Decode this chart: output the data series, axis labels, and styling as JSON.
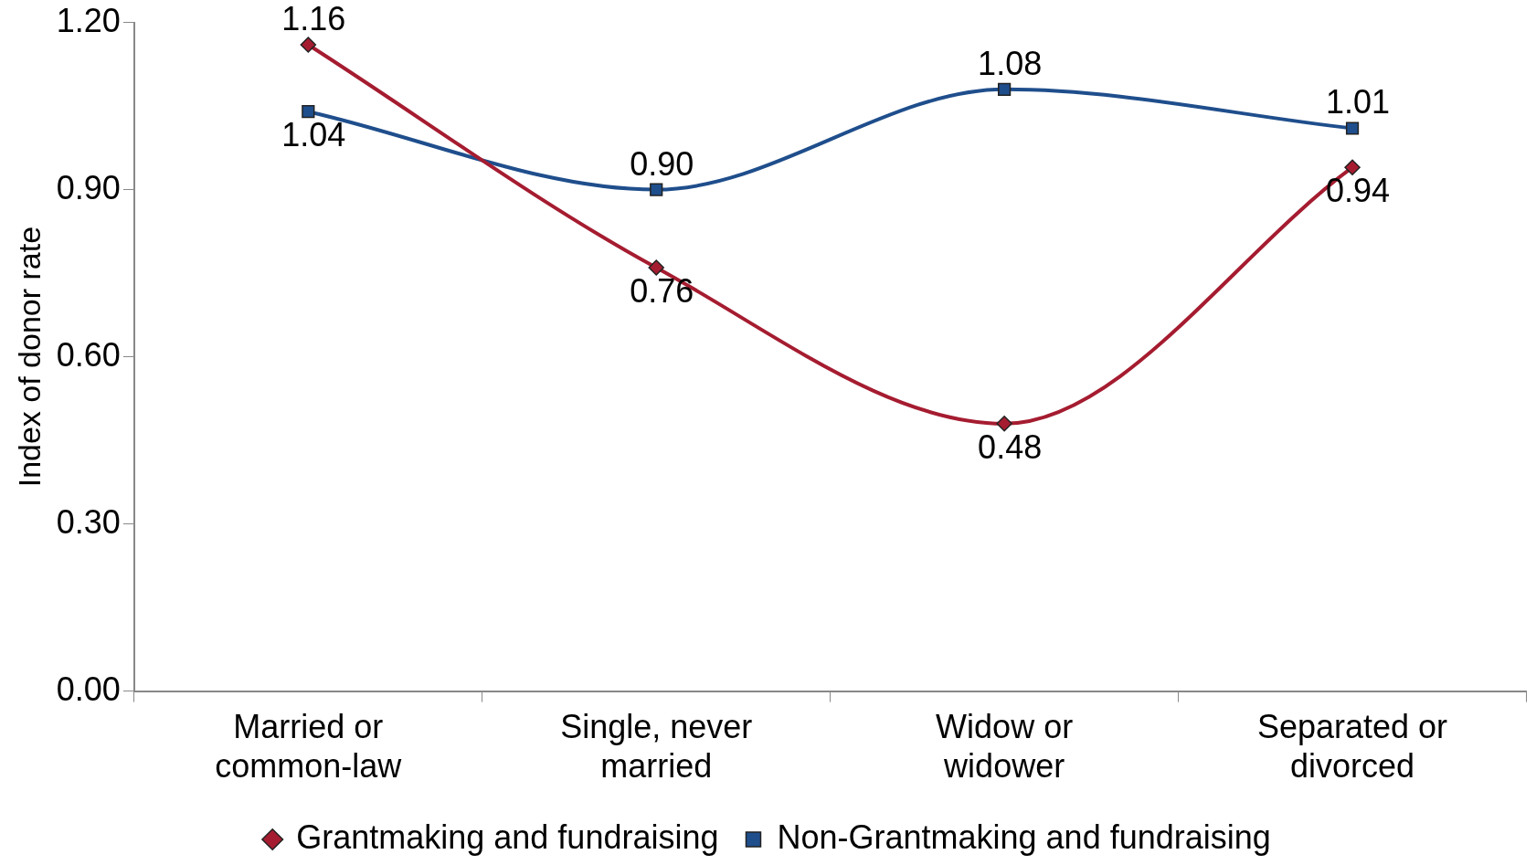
{
  "chart_data": {
    "type": "line",
    "ylabel": "Index of donor rate",
    "categories": [
      "Married or common-law",
      "Single, never married",
      "Widow or widower",
      "Separated or divorced"
    ],
    "series": [
      {
        "name": "Grantmaking and fundraising",
        "color": "#a51c30",
        "marker": "diamond",
        "values": [
          1.16,
          0.76,
          0.48,
          0.94
        ],
        "value_labels": [
          "1.16",
          "0.76",
          "0.48",
          "0.94"
        ]
      },
      {
        "name": "Non-Grantmaking and fundraising",
        "color": "#1f4e8c",
        "marker": "square",
        "values": [
          1.04,
          0.9,
          1.08,
          1.01
        ],
        "value_labels": [
          "1.04",
          "0.90",
          "1.08",
          "1.01"
        ]
      }
    ],
    "ylim": [
      0,
      1.2
    ],
    "yticks": [
      {
        "value": 0,
        "label": "0.00"
      },
      {
        "value": 0.3,
        "label": "0.30"
      },
      {
        "value": 0.6,
        "label": "0.60"
      },
      {
        "value": 0.9,
        "label": "0.90"
      },
      {
        "value": 1.2,
        "label": "1.20"
      }
    ],
    "grid": false,
    "legend": "bottom"
  }
}
